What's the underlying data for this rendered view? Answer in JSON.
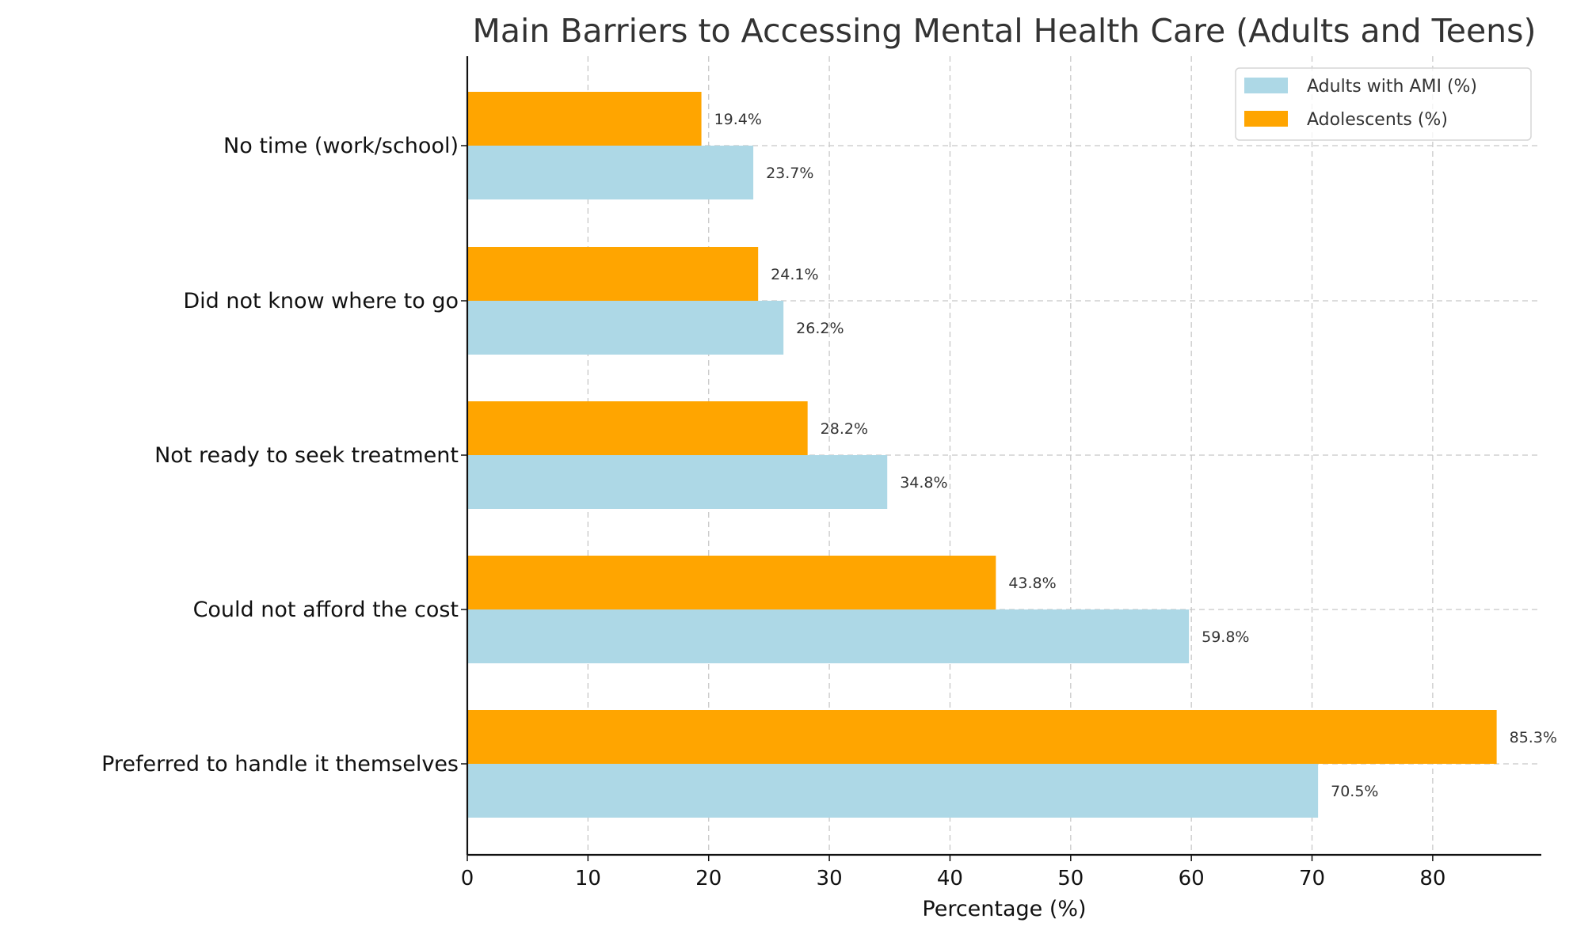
{
  "chart_data": {
    "type": "bar",
    "orientation": "horizontal",
    "title": "Main Barriers to Accessing Mental Health Care (Adults and Teens)",
    "xlabel": "Percentage (%)",
    "ylabel": "",
    "xlim": [
      0,
      89
    ],
    "xticks": [
      0,
      10,
      20,
      30,
      40,
      50,
      60,
      70,
      80
    ],
    "grid": true,
    "legend_position": "top-right",
    "categories": [
      "No time (work/school)",
      "Did not know where to go",
      "Not ready to seek treatment",
      "Could not afford the cost",
      "Preferred to handle it themselves"
    ],
    "series": [
      {
        "name": "Adults with AMI (%)",
        "color": "#add8e6",
        "values": [
          23.7,
          26.2,
          34.8,
          59.8,
          70.5
        ],
        "labels": [
          "23.7%",
          "26.2%",
          "34.8%",
          "59.8%",
          "70.5%"
        ]
      },
      {
        "name": "Adolescents (%)",
        "color": "#ffa500",
        "values": [
          19.4,
          24.1,
          28.2,
          43.8,
          85.3
        ],
        "labels": [
          "19.4%",
          "24.1%",
          "28.2%",
          "43.8%",
          "85.3%"
        ]
      }
    ]
  }
}
